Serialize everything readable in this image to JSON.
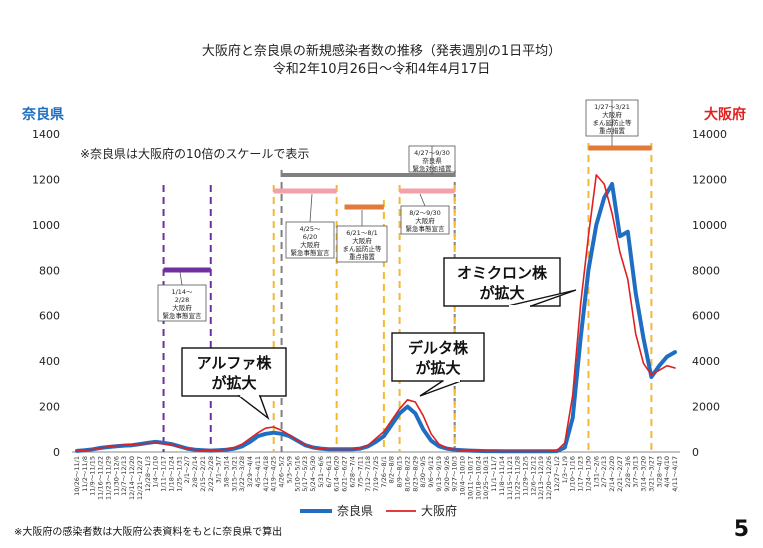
{
  "page": {
    "title_line1": "大阪府と奈良県の新規感染者数の推移（発表週別の1日平均）",
    "title_line2": "令和2年10月26日～令和4年4月17日",
    "page_number": "5",
    "footnote": "※大阪府の感染者数は大阪府公表資料をもとに奈良県で算出"
  },
  "chart_data": {
    "type": "line",
    "left_axis_label": "奈良県",
    "right_axis_label": "大阪府",
    "left_color": "#1f6ec2",
    "right_color": "#e02020",
    "ylim_left": [
      0,
      1400
    ],
    "ylim_right": [
      0,
      14000
    ],
    "y_ticks_left": [
      "0",
      "200",
      "400",
      "600",
      "800",
      "1000",
      "1200",
      "1400"
    ],
    "y_ticks_right": [
      "0",
      "2000",
      "4000",
      "6000",
      "8000",
      "10000",
      "12000",
      "14000"
    ],
    "scale_note": "※奈良県は大阪府の10倍のスケールで表示",
    "categories": [
      "10/26～11/1",
      "11/2～11/8",
      "11/9～11/15",
      "11/16～11/22",
      "11/23～11/29",
      "11/30～12/6",
      "12/7～12/13",
      "12/14～12/20",
      "12/21～12/27",
      "12/28～1/3",
      "1/4～1/10",
      "1/11～1/17",
      "1/18～1/24",
      "1/25～1/31",
      "2/1～2/7",
      "2/8～2/14",
      "2/15～2/21",
      "2/22～2/28",
      "3/1～3/7",
      "3/8～3/14",
      "3/15～3/21",
      "3/22～3/28",
      "3/29～4/4",
      "4/5～4/11",
      "4/12～4/18",
      "4/19～4/25",
      "4/26～5/2",
      "5/3～5/9",
      "5/10～5/16",
      "5/17～5/23",
      "5/24～5/30",
      "5/31～6/6",
      "6/7～6/13",
      "6/14～6/20",
      "6/21～6/27",
      "6/28～7/4",
      "7/5～7/11",
      "7/12～7/18",
      "7/19～7/25",
      "7/26～8/1",
      "8/2～8/8",
      "8/9～8/15",
      "8/16～8/22",
      "8/23～8/29",
      "8/30～9/5",
      "9/6～9/12",
      "9/13～9/19",
      "9/20～9/26",
      "9/27～10/3",
      "10/4～10/10",
      "10/11～10/17",
      "10/18～10/24",
      "10/25～10/31",
      "11/1～11/7",
      "11/8～11/14",
      "11/15～11/21",
      "11/22～11/28",
      "11/29～12/5",
      "12/6～12/12",
      "12/13～12/19",
      "12/20～12/26",
      "12/27～1/2",
      "1/3～1/9",
      "1/10～1/16",
      "1/17～1/23",
      "1/24～1/30",
      "1/31～2/6",
      "2/7～2/13",
      "2/14～2/20",
      "2/21～2/27",
      "2/28～3/6",
      "3/7～3/13",
      "3/14～3/20",
      "3/21～3/27",
      "3/28～4/3",
      "4/4～4/10",
      "4/11～4/17"
    ],
    "x_tick_labels": [
      "10/26～11/1",
      "11/2～11/8",
      "11/9～11/15",
      "11/16～11/22",
      "11/23～11/29",
      "11/30～12/6",
      "12/7～12/13",
      "12/14～12/20",
      "12/21～12/27",
      "12/28～1/3",
      "1/4～1/10",
      "1/11～1/17",
      "1/18～1/24",
      "1/25～1/31",
      "2/1～2/7",
      "2/8～2/14",
      "2/15～2/21",
      "2/22～2/28",
      "3/1～3/7",
      "3/8～3/14",
      "3/15～3/21",
      "3/22～3/28",
      "3/29～4/4",
      "4/5～4/11",
      "4/12～4/18",
      "4/19～4/25",
      "4/26～5/2",
      "5/3～5/9",
      "5/10～5/16",
      "5/17～5/23",
      "5/24～5/30",
      "5/31～6/6",
      "6/7～6/13",
      "6/14～6/20",
      "6/21～6/27",
      "6/28～7/4",
      "7/5～7/11",
      "7/12～7/18",
      "7/19～7/25",
      "7/26～8/1",
      "8/2～8/8",
      "8/9～8/15",
      "8/16～8/22",
      "8/23～8/29",
      "8/30～9/5",
      "9/6～9/12",
      "9/13～9/19",
      "9/20～9/26",
      "9/27～10/3",
      "10/4～10/10",
      "10/11～10/17",
      "10/18～10/24",
      "10/25～10/31",
      "11/1～11/7",
      "11/8～11/14",
      "11/15～11/21",
      "11/22～11/28",
      "11/29～12/5",
      "12/6～12/12",
      "12/13～12/19",
      "12/20～12/26",
      "12/27～1/2",
      "1/3～1/9",
      "1/10～1/16",
      "1/17～1/23",
      "1/24～1/30",
      "1/31～2/6",
      "2/7～2/13",
      "2/14～2/20",
      "2/21～2/27",
      "2/28～3/6",
      "3/7～3/13",
      "3/14～3/20",
      "3/21～3/27",
      "3/28～4/3",
      "4/4～4/10",
      "4/11～4/17"
    ],
    "series": [
      {
        "name": "奈良県",
        "axis": "left",
        "color": "#1f6ec2",
        "values": [
          5,
          8,
          12,
          18,
          22,
          25,
          28,
          30,
          35,
          40,
          45,
          40,
          35,
          25,
          15,
          10,
          8,
          6,
          8,
          10,
          15,
          25,
          45,
          70,
          80,
          85,
          80,
          70,
          50,
          30,
          20,
          15,
          12,
          12,
          12,
          12,
          15,
          25,
          45,
          70,
          120,
          170,
          200,
          170,
          100,
          50,
          25,
          15,
          10,
          8,
          6,
          5,
          4,
          4,
          3,
          3,
          3,
          3,
          3,
          3,
          3,
          4,
          20,
          150,
          500,
          800,
          1000,
          1120,
          1180,
          950,
          970,
          700,
          500,
          330,
          380,
          420,
          440
        ]
      },
      {
        "name": "大阪府",
        "axis": "right",
        "color": "#e02020",
        "values": [
          50,
          80,
          120,
          180,
          230,
          280,
          310,
          330,
          360,
          380,
          400,
          360,
          320,
          240,
          150,
          100,
          80,
          60,
          80,
          120,
          200,
          350,
          600,
          850,
          1050,
          1100,
          950,
          750,
          500,
          320,
          200,
          150,
          120,
          110,
          110,
          120,
          170,
          300,
          600,
          900,
          1400,
          1900,
          2300,
          2200,
          1600,
          800,
          350,
          180,
          110,
          80,
          60,
          50,
          40,
          40,
          30,
          30,
          30,
          30,
          30,
          30,
          40,
          60,
          400,
          2500,
          6500,
          9500,
          12200,
          11800,
          10500,
          8800,
          7600,
          5200,
          3900,
          3400,
          3600,
          3800,
          3700
        ]
      }
    ],
    "annotations": [
      {
        "id": "alpha",
        "text_line1": "アルファ株",
        "text_line2": "が拡大"
      },
      {
        "id": "delta",
        "text_line1": "デルタ株",
        "text_line2": "が拡大"
      },
      {
        "id": "omicron",
        "text_line1": "オミクロン株",
        "text_line2": "が拡大"
      }
    ],
    "periods": [
      {
        "id": "p1",
        "color": "#7030a0",
        "lines": [
          "1/14～",
          "2/28",
          "大阪府",
          "緊急事態宣言"
        ]
      },
      {
        "id": "p2",
        "color": "#f4a0a8",
        "lines": [
          "4/25～",
          "6/20",
          "大阪府",
          "緊急事態宣言"
        ]
      },
      {
        "id": "p3",
        "color": "#808080",
        "lines": [
          "4/27～9/30",
          "奈良県",
          "緊急対処措置"
        ]
      },
      {
        "id": "p4",
        "color": "#e07b39",
        "lines": [
          "6/21～8/1",
          "大阪府",
          "まん延防止等",
          "重点措置"
        ]
      },
      {
        "id": "p5",
        "color": "#f4a0a8",
        "lines": [
          "8/2～9/30",
          "大阪府",
          "緊急事態宣言"
        ]
      },
      {
        "id": "p6",
        "color": "#e07b39",
        "lines": [
          "1/27～3/21",
          "大阪府",
          "まん延防止等",
          "重点措置"
        ]
      }
    ],
    "legend": [
      "奈良県",
      "大阪府"
    ]
  }
}
